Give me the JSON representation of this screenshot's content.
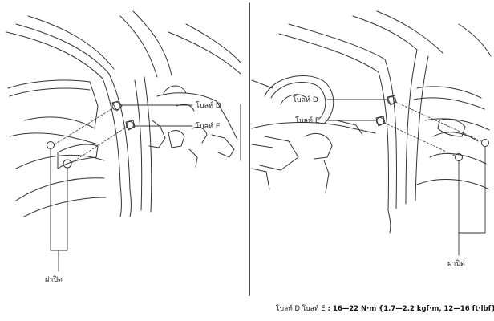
{
  "labels": {
    "left": {
      "bolt_d": "โบลท์ D",
      "bolt_e": "โบลท์ E",
      "cover": "ฝาปิด"
    },
    "right": {
      "bolt_d": "โบลท์ D",
      "bolt_e": "โบลท์ E",
      "cover": "ฝาปิด"
    }
  },
  "torque_spec": {
    "bolts": "โบลท์ D โบลท์ E",
    "value": "16—22 N·m {1.7—2.2 kgf·m, 12—16 ft·lbf}"
  }
}
